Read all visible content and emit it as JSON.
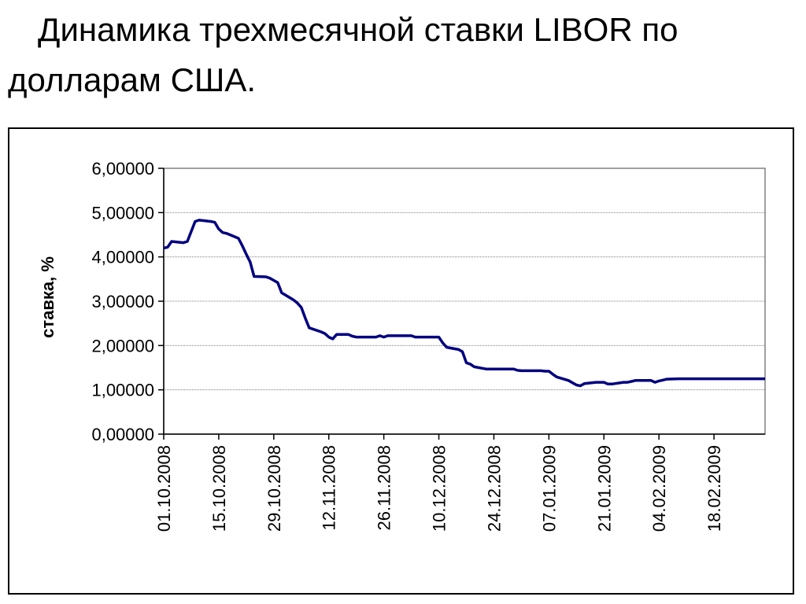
{
  "title": "Динамика трехмесячной ставки LIBOR по долларам США.",
  "chart_data": {
    "type": "line",
    "ylabel": "ставка, %",
    "xlabel": "",
    "ylim": [
      0,
      6
    ],
    "yticks": [
      "0,00000",
      "1,00000",
      "2,00000",
      "3,00000",
      "4,00000",
      "5,00000",
      "6,00000"
    ],
    "grid": true,
    "legend": "none",
    "line_color": "#000080",
    "x_tick_labels": [
      "01.10.2008",
      "15.10.2008",
      "29.10.2008",
      "12.11.2008",
      "26.11.2008",
      "10.12.2008",
      "24.12.2008",
      "07.01.2009",
      "21.01.2009",
      "04.02.2009",
      "18.02.2009"
    ],
    "series": [
      {
        "points": [
          [
            "2008-10-01",
            4.2
          ],
          [
            "2008-10-02",
            4.22
          ],
          [
            "2008-10-03",
            4.35
          ],
          [
            "2008-10-06",
            4.32
          ],
          [
            "2008-10-07",
            4.35
          ],
          [
            "2008-10-09",
            4.8
          ],
          [
            "2008-10-10",
            4.83
          ],
          [
            "2008-10-13",
            4.8
          ],
          [
            "2008-10-14",
            4.78
          ],
          [
            "2008-10-15",
            4.63
          ],
          [
            "2008-10-16",
            4.55
          ],
          [
            "2008-10-17",
            4.53
          ],
          [
            "2008-10-20",
            4.42
          ],
          [
            "2008-10-21",
            4.25
          ],
          [
            "2008-10-22",
            4.06
          ],
          [
            "2008-10-23",
            3.88
          ],
          [
            "2008-10-24",
            3.56
          ],
          [
            "2008-10-27",
            3.55
          ],
          [
            "2008-10-28",
            3.52
          ],
          [
            "2008-10-29",
            3.47
          ],
          [
            "2008-10-30",
            3.42
          ],
          [
            "2008-10-31",
            3.19
          ],
          [
            "2008-11-03",
            3.03
          ],
          [
            "2008-11-04",
            2.96
          ],
          [
            "2008-11-05",
            2.86
          ],
          [
            "2008-11-06",
            2.62
          ],
          [
            "2008-11-07",
            2.4
          ],
          [
            "2008-11-10",
            2.31
          ],
          [
            "2008-11-11",
            2.27
          ],
          [
            "2008-11-12",
            2.19
          ],
          [
            "2008-11-13",
            2.15
          ],
          [
            "2008-11-14",
            2.25
          ],
          [
            "2008-11-17",
            2.25
          ],
          [
            "2008-11-18",
            2.21
          ],
          [
            "2008-11-19",
            2.19
          ],
          [
            "2008-11-20",
            2.19
          ],
          [
            "2008-11-21",
            2.19
          ],
          [
            "2008-11-24",
            2.19
          ],
          [
            "2008-11-25",
            2.22
          ],
          [
            "2008-11-26",
            2.19
          ],
          [
            "2008-11-27",
            2.22
          ],
          [
            "2008-11-28",
            2.22
          ],
          [
            "2008-12-01",
            2.22
          ],
          [
            "2008-12-02",
            2.22
          ],
          [
            "2008-12-03",
            2.22
          ],
          [
            "2008-12-04",
            2.19
          ],
          [
            "2008-12-05",
            2.19
          ],
          [
            "2008-12-08",
            2.19
          ],
          [
            "2008-12-09",
            2.19
          ],
          [
            "2008-12-10",
            2.19
          ],
          [
            "2008-12-11",
            2.06
          ],
          [
            "2008-12-12",
            1.96
          ],
          [
            "2008-12-15",
            1.91
          ],
          [
            "2008-12-16",
            1.86
          ],
          [
            "2008-12-17",
            1.61
          ],
          [
            "2008-12-18",
            1.58
          ],
          [
            "2008-12-19",
            1.52
          ],
          [
            "2008-12-22",
            1.47
          ],
          [
            "2008-12-23",
            1.47
          ],
          [
            "2008-12-24",
            1.47
          ],
          [
            "2008-12-29",
            1.47
          ],
          [
            "2008-12-30",
            1.44
          ],
          [
            "2008-12-31",
            1.43
          ],
          [
            "2009-01-02",
            1.43
          ],
          [
            "2009-01-05",
            1.43
          ],
          [
            "2009-01-06",
            1.42
          ],
          [
            "2009-01-07",
            1.42
          ],
          [
            "2009-01-08",
            1.35
          ],
          [
            "2009-01-09",
            1.29
          ],
          [
            "2009-01-12",
            1.21
          ],
          [
            "2009-01-13",
            1.16
          ],
          [
            "2009-01-14",
            1.11
          ],
          [
            "2009-01-15",
            1.09
          ],
          [
            "2009-01-16",
            1.14
          ],
          [
            "2009-01-19",
            1.17
          ],
          [
            "2009-01-20",
            1.17
          ],
          [
            "2009-01-21",
            1.17
          ],
          [
            "2009-01-22",
            1.13
          ],
          [
            "2009-01-23",
            1.13
          ],
          [
            "2009-01-26",
            1.17
          ],
          [
            "2009-01-27",
            1.17
          ],
          [
            "2009-01-28",
            1.19
          ],
          [
            "2009-01-29",
            1.21
          ],
          [
            "2009-01-30",
            1.21
          ],
          [
            "2009-02-02",
            1.21
          ],
          [
            "2009-02-03",
            1.17
          ],
          [
            "2009-02-04",
            1.2
          ],
          [
            "2009-02-05",
            1.22
          ],
          [
            "2009-02-06",
            1.24
          ],
          [
            "2009-02-09",
            1.25
          ],
          [
            "2009-02-10",
            1.25
          ],
          [
            "2009-02-12",
            1.25
          ],
          [
            "2009-02-16",
            1.25
          ],
          [
            "2009-02-18",
            1.25
          ],
          [
            "2009-02-20",
            1.25
          ],
          [
            "2009-02-23",
            1.25
          ],
          [
            "2009-02-25",
            1.25
          ],
          [
            "2009-02-27",
            1.25
          ],
          [
            "2009-03-02",
            1.25
          ],
          [
            "2009-03-03",
            1.25
          ]
        ]
      }
    ]
  }
}
